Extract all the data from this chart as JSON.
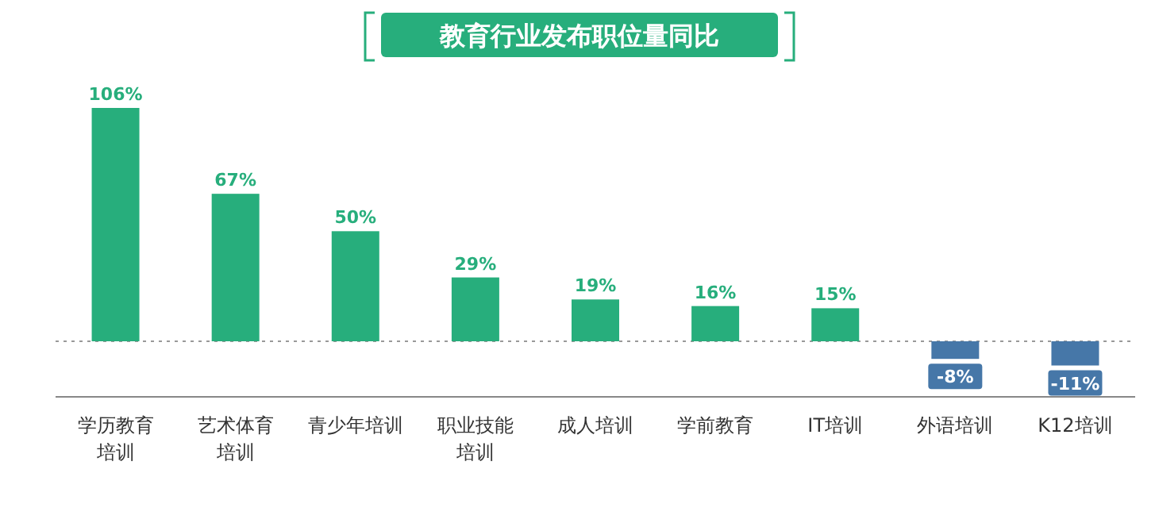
{
  "chart_data": {
    "type": "bar",
    "title": "教育行业发布职位量同比",
    "categories": [
      "学历教育培训",
      "艺术体育培训",
      "青少年培训",
      "职业技能培训",
      "成人培训",
      "学前教育",
      "IT培训",
      "外语培训",
      "K12培训"
    ],
    "values": [
      106,
      67,
      50,
      29,
      19,
      16,
      15,
      -8,
      -11
    ],
    "colors": [
      "#27ae7c",
      "#27ae7c",
      "#27ae7c",
      "#27ae7c",
      "#27ae7c",
      "#27ae7c",
      "#27ae7c",
      "#4677a8",
      "#4677a8"
    ],
    "ref_lines": [
      {
        "axis": "y",
        "value": 0,
        "line_style": "dotted",
        "color": "#999999"
      }
    ],
    "value_labels": [
      "106%",
      "67%",
      "50%",
      "29%",
      "19%",
      "16%",
      "15%",
      "-8%",
      "-11%"
    ]
  }
}
